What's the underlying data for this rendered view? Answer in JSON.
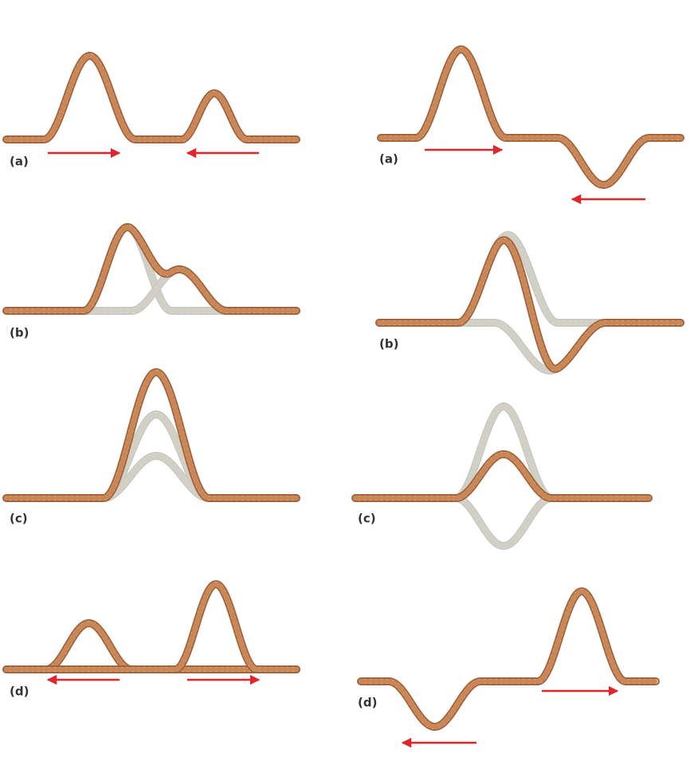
{
  "left": {
    "labels": [
      "(a)",
      "(b)",
      "(c)",
      "(d)"
    ]
  },
  "right": {
    "labels": [
      "(a)",
      "(b)",
      "(c)",
      "(d)"
    ]
  }
}
